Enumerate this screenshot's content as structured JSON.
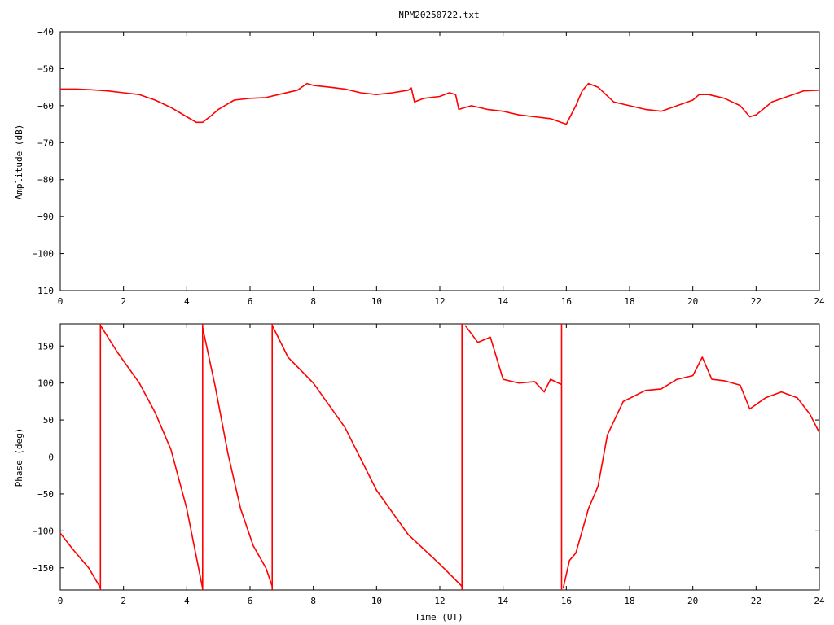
{
  "title": "NPM20250722.txt",
  "colors": {
    "trace": "#ff0000",
    "axes": "#000000",
    "background": "#ffffff"
  },
  "chart_data": [
    {
      "type": "line",
      "title": "NPM20250722.txt",
      "xlabel": "",
      "ylabel": "Amplitude (dB)",
      "xlim": [
        0,
        24
      ],
      "ylim": [
        -110,
        -40
      ],
      "x_ticks": [
        0,
        2,
        4,
        6,
        8,
        10,
        12,
        14,
        16,
        18,
        20,
        22,
        24
      ],
      "y_ticks": [
        -40,
        -50,
        -60,
        -70,
        -80,
        -90,
        -100,
        -110
      ],
      "x_tick_labels": [
        "0",
        "2",
        "4",
        "6",
        "8",
        "10",
        "12",
        "14",
        "16",
        "18",
        "20",
        "22",
        "24"
      ],
      "y_tick_labels": [
        "−40",
        "−50",
        "−60",
        "−70",
        "−80",
        "−90",
        "−100",
        "−110"
      ],
      "grid": false,
      "x": [
        0,
        0.5,
        1,
        1.5,
        2,
        2.5,
        3,
        3.5,
        4,
        4.3,
        4.5,
        4.8,
        5,
        5.5,
        6,
        6.5,
        7,
        7.5,
        7.8,
        8,
        8.5,
        9,
        9.5,
        10,
        10.5,
        11,
        11.1,
        11.2,
        11.5,
        12,
        12.3,
        12.5,
        12.6,
        13,
        13.5,
        14,
        14.5,
        15,
        15.5,
        16,
        16.3,
        16.5,
        16.7,
        17,
        17.5,
        18,
        18.5,
        19,
        19.5,
        20,
        20.2,
        20.5,
        21,
        21.5,
        21.8,
        22,
        22.5,
        23,
        23.5,
        24
      ],
      "y": [
        -55.5,
        -55.5,
        -55.7,
        -56,
        -56.5,
        -57,
        -58.5,
        -60.5,
        -63,
        -64.5,
        -64.5,
        -62.5,
        -61,
        -58.5,
        -58,
        -57.8,
        -56.8,
        -55.8,
        -54,
        -54.5,
        -55,
        -55.5,
        -56.5,
        -57,
        -56.5,
        -55.8,
        -55.2,
        -59,
        -58,
        -57.5,
        -56.5,
        -57,
        -61,
        -60,
        -61,
        -61.5,
        -62.5,
        -63,
        -63.5,
        -65,
        -60,
        -56,
        -54,
        -55,
        -59,
        -60,
        -61,
        -61.5,
        -60,
        -58.5,
        -57,
        -57,
        -58,
        -60,
        -63,
        -62.5,
        -59,
        -57.5,
        -56,
        -55.8
      ]
    },
    {
      "type": "line",
      "title": "",
      "xlabel": "Time (UT)",
      "ylabel": "Phase (deg)",
      "xlim": [
        0,
        24
      ],
      "ylim": [
        -180,
        180
      ],
      "x_ticks": [
        0,
        2,
        4,
        6,
        8,
        10,
        12,
        14,
        16,
        18,
        20,
        22,
        24
      ],
      "y_ticks": [
        150,
        100,
        50,
        0,
        -50,
        -100,
        -150
      ],
      "x_tick_labels": [
        "0",
        "2",
        "4",
        "6",
        "8",
        "10",
        "12",
        "14",
        "16",
        "18",
        "20",
        "22",
        "24"
      ],
      "y_tick_labels": [
        "150",
        "100",
        "50",
        "0",
        "−50",
        "−100",
        "−150"
      ],
      "grid": false,
      "segments": [
        {
          "x": [
            0,
            0.4,
            0.9,
            1.27
          ],
          "y": [
            -103,
            -125,
            -150,
            -177
          ]
        },
        {
          "x": [
            1.27,
            1.27
          ],
          "y": [
            -180,
            180
          ]
        },
        {
          "x": [
            1.27,
            1.8,
            2.5,
            3,
            3.5,
            4,
            4.5
          ],
          "y": [
            178,
            142,
            100,
            60,
            10,
            -70,
            -178
          ]
        },
        {
          "x": [
            4.5,
            4.5
          ],
          "y": [
            -180,
            180
          ]
        },
        {
          "x": [
            4.5,
            4.9,
            5.3,
            5.7,
            6.1,
            6.5,
            6.7
          ],
          "y": [
            175,
            95,
            5,
            -70,
            -120,
            -150,
            -175
          ]
        },
        {
          "x": [
            6.7,
            6.7
          ],
          "y": [
            -180,
            180
          ]
        },
        {
          "x": [
            6.7,
            7.2,
            8,
            9,
            10,
            11,
            12,
            12.7
          ],
          "y": [
            178,
            135,
            100,
            40,
            -45,
            -105,
            -145,
            -175
          ]
        },
        {
          "x": [
            12.7,
            12.7
          ],
          "y": [
            -180,
            180
          ]
        },
        {
          "x": [
            12.8,
            13.2,
            13.6,
            14,
            14.5,
            15,
            15.3,
            15.5,
            15.85
          ],
          "y": [
            178,
            155,
            162,
            105,
            100,
            102,
            88,
            105,
            98
          ]
        },
        {
          "x": [
            15.85,
            15.85
          ],
          "y": [
            180,
            -180
          ]
        },
        {
          "x": [
            15.9,
            16.1,
            16.3,
            16.5,
            16.7,
            17,
            17.3,
            17.8,
            18.5,
            19,
            19.5,
            20,
            20.3,
            20.6,
            21,
            21.5,
            21.8,
            22.3,
            22.8,
            23.3,
            23.7,
            24
          ],
          "y": [
            -178,
            -140,
            -130,
            -100,
            -70,
            -40,
            30,
            75,
            90,
            92,
            105,
            110,
            135,
            105,
            103,
            97,
            65,
            80,
            88,
            80,
            58,
            33
          ]
        }
      ]
    }
  ]
}
